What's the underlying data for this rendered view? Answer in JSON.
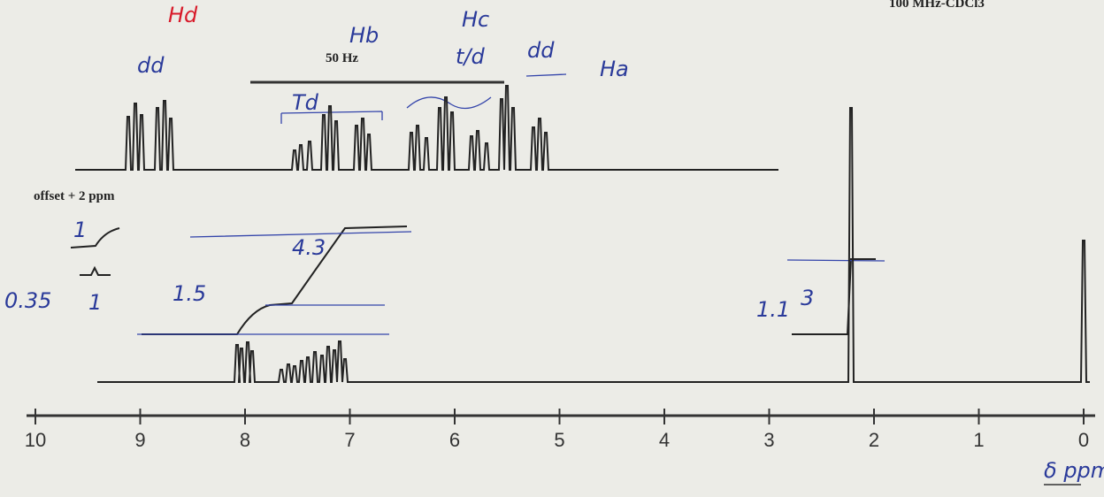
{
  "header": {
    "spectrometer": "100 MHz-CDCl3",
    "scale": "50 Hz",
    "offset": "offset + 2 ppm"
  },
  "axis": {
    "ticks": [
      10,
      9,
      8,
      7,
      6,
      5,
      4,
      3,
      2,
      1,
      0
    ],
    "label": "δ ppm"
  },
  "annotations": [
    "Hd",
    "dd",
    "Hb",
    "Hc",
    "t/d",
    "dd",
    "Ha",
    "Td",
    "1",
    "4.3",
    "1.5",
    "3",
    "1.1",
    "0.35",
    "1"
  ]
}
